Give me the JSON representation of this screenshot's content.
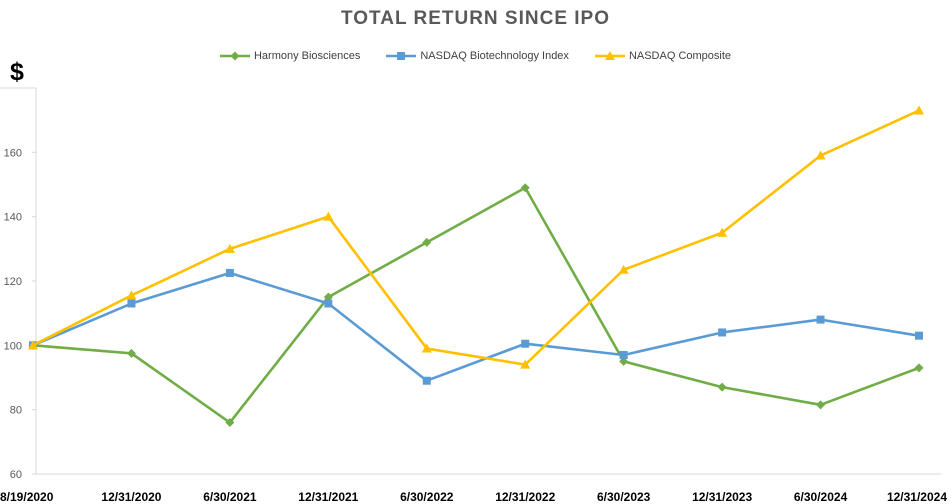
{
  "chart_data": {
    "type": "line",
    "title": "TOTAL RETURN SINCE IPO",
    "ylabel": "$",
    "xlabel": "",
    "categories": [
      "8/19/2020",
      "12/31/2020",
      "6/30/2021",
      "12/31/2021",
      "6/30/2022",
      "12/31/2022",
      "6/30/2023",
      "12/31/2023",
      "6/30/2024",
      "12/31/2024"
    ],
    "ylim": [
      60,
      180
    ],
    "yticks": [
      60,
      80,
      100,
      120,
      140,
      160
    ],
    "legend_position": "top-center",
    "grid": false,
    "series": [
      {
        "name": "Harmony Biosciences",
        "color": "#70AD47",
        "marker": "diamond",
        "values": [
          100,
          97.5,
          76,
          115,
          132,
          149,
          95,
          87,
          81.5,
          93
        ]
      },
      {
        "name": "NASDAQ Biotechnology Index",
        "color": "#5B9BD5",
        "marker": "square",
        "values": [
          100,
          113,
          122.5,
          113,
          89,
          100.5,
          97,
          104,
          108,
          103
        ]
      },
      {
        "name": "NASDAQ Composite",
        "color": "#FFC000",
        "marker": "triangle",
        "values": [
          100,
          115.5,
          130,
          140,
          99,
          94,
          123.5,
          135,
          159,
          173
        ]
      }
    ]
  }
}
